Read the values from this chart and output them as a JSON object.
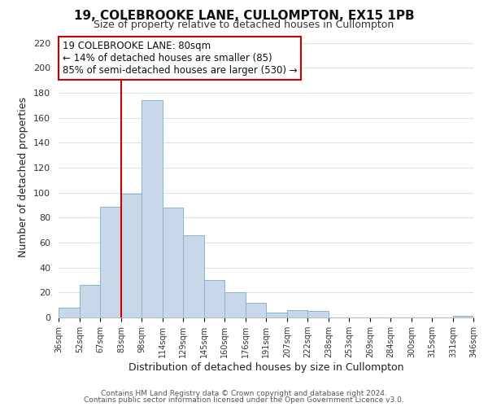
{
  "title": "19, COLEBROOKE LANE, CULLOMPTON, EX15 1PB",
  "subtitle": "Size of property relative to detached houses in Cullompton",
  "xlabel": "Distribution of detached houses by size in Cullompton",
  "ylabel": "Number of detached properties",
  "bar_color": "#c8d8e8",
  "bar_edge_color": "#8ab4cc",
  "grid_color": "#d8e4ec",
  "vline_x": 83,
  "vline_color": "#cc0000",
  "annotation_title": "19 COLEBROOKE LANE: 80sqm",
  "annotation_line1": "← 14% of detached houses are smaller (85)",
  "annotation_line2": "85% of semi-detached houses are larger (530) →",
  "annotation_box_edge": "#cc0000",
  "bin_edges": [
    36,
    52,
    67,
    83,
    98,
    114,
    129,
    145,
    160,
    176,
    191,
    207,
    222,
    238,
    253,
    269,
    284,
    300,
    315,
    331,
    346
  ],
  "bin_heights": [
    8,
    26,
    89,
    99,
    174,
    88,
    66,
    30,
    20,
    12,
    4,
    6,
    5,
    0,
    0,
    0,
    0,
    0,
    0,
    1
  ],
  "xlim_left": 36,
  "xlim_right": 346,
  "ylim_top": 225,
  "yticks": [
    0,
    20,
    40,
    60,
    80,
    100,
    120,
    140,
    160,
    180,
    200,
    220
  ],
  "footer1": "Contains HM Land Registry data © Crown copyright and database right 2024.",
  "footer2": "Contains public sector information licensed under the Open Government Licence v3.0.",
  "tick_labels": [
    "36sqm",
    "52sqm",
    "67sqm",
    "83sqm",
    "98sqm",
    "114sqm",
    "129sqm",
    "145sqm",
    "160sqm",
    "176sqm",
    "191sqm",
    "207sqm",
    "222sqm",
    "238sqm",
    "253sqm",
    "269sqm",
    "284sqm",
    "300sqm",
    "315sqm",
    "331sqm",
    "346sqm"
  ]
}
